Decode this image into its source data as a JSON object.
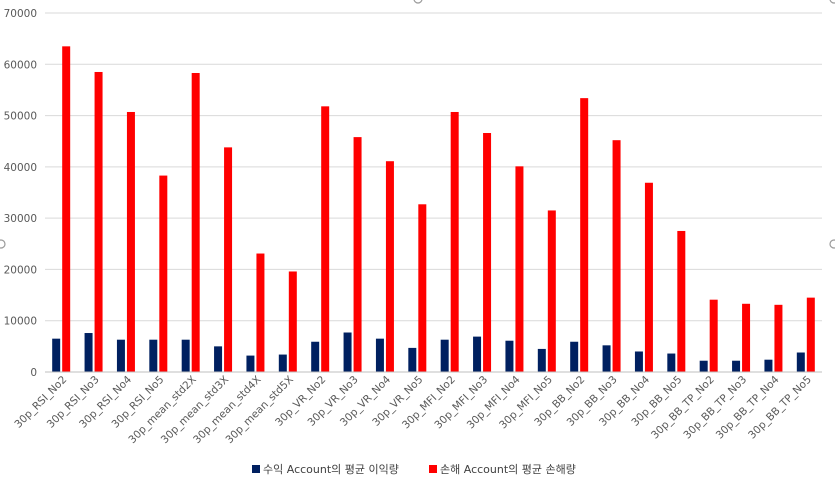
{
  "chart_data": {
    "type": "bar",
    "categories": [
      "30p_RSI_No2",
      "30p_RSI_No3",
      "30p_RSI_No4",
      "30p_RSI_No5",
      "30p_mean_std2X",
      "30p_mean_std3X",
      "30p_mean_std4X",
      "30p_mean_std5X",
      "30p_VR_No2",
      "30p_VR_No3",
      "30p_VR_No4",
      "30p_VR_No5",
      "30p_MFI_No2",
      "30p_MFI_No3",
      "30p_MFI_No4",
      "30p_MFI_No5",
      "30p_BB_No2",
      "30p_BB_No3",
      "30p_BB_No4",
      "30p_BB_No5",
      "30p_BB_TP_No2",
      "30p_BB_TP_No3",
      "30p_BB_TP_No4",
      "30p_BB_TP_No5"
    ],
    "series": [
      {
        "name": "수익 Account의 평균 이익량",
        "color": "#002060",
        "values": [
          6500,
          7600,
          6300,
          6300,
          6300,
          5000,
          3200,
          3400,
          5900,
          7700,
          6500,
          4700,
          6300,
          6900,
          6100,
          4500,
          5900,
          5200,
          4000,
          3600,
          2200,
          2200,
          2400,
          3800
        ]
      },
      {
        "name": "손해 Account의 평균 손해량",
        "color": "#ff0000",
        "values": [
          63500,
          58500,
          50700,
          38300,
          58300,
          43800,
          23100,
          19600,
          51800,
          45800,
          41100,
          32700,
          50700,
          46600,
          40100,
          31500,
          53400,
          45200,
          36900,
          27500,
          14100,
          13300,
          13100,
          14500
        ]
      }
    ],
    "yticks": [
      "0",
      "10000",
      "20000",
      "30000",
      "40000",
      "50000",
      "60000",
      "70000"
    ],
    "ylim": [
      0,
      70000
    ],
    "xlabel": "",
    "ylabel": "",
    "title": "",
    "grid": true,
    "legend_position": "bottom"
  }
}
